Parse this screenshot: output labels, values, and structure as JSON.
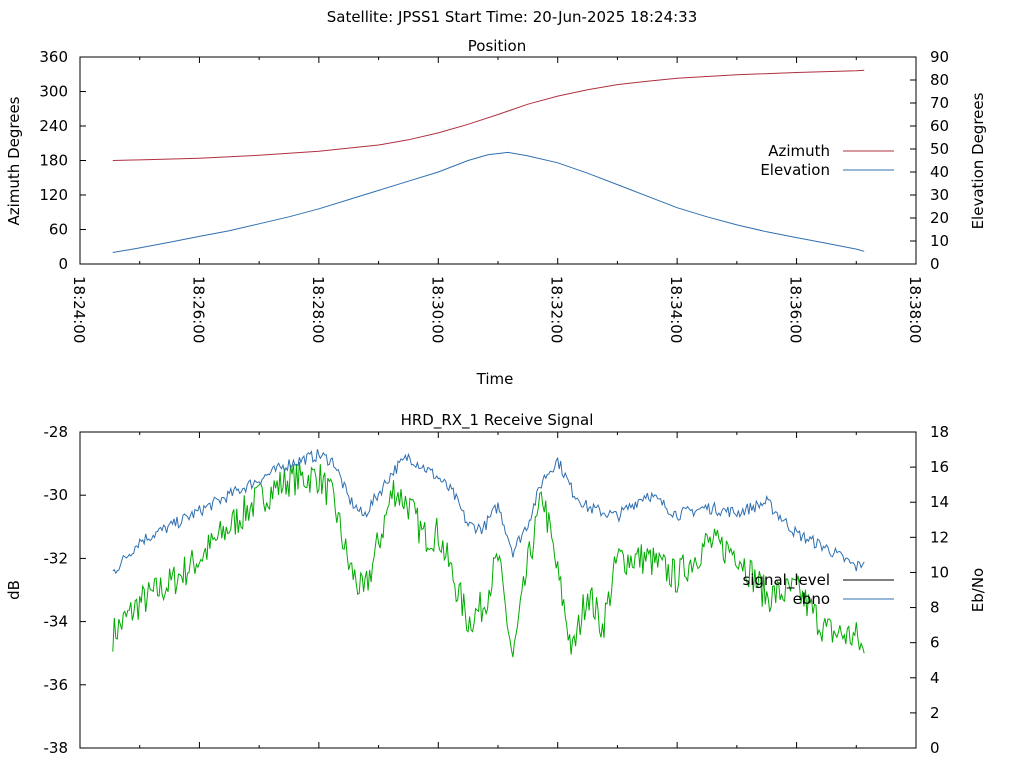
{
  "header": {
    "title": "Satellite: JPSS1    Start Time: 20-Jun-2025 18:24:33"
  },
  "chart_data": [
    {
      "type": "line",
      "title": "Position",
      "xlabel": "Time",
      "ylabel": "Azimuth Degrees",
      "y2label": "Elevation Degrees",
      "x_ticks": [
        "18:24:00",
        "18:26:00",
        "18:28:00",
        "18:30:00",
        "18:32:00",
        "18:34:00",
        "18:36:00",
        "18:38:00"
      ],
      "xlim": [
        "18:24:00",
        "18:38:00"
      ],
      "ylim": [
        0,
        360
      ],
      "y_ticks": [
        "0",
        "60",
        "120",
        "180",
        "240",
        "300",
        "360"
      ],
      "y2lim": [
        0,
        90
      ],
      "y2_ticks": [
        "0",
        "10",
        "20",
        "30",
        "40",
        "50",
        "60",
        "70",
        "80",
        "90"
      ],
      "legend": "right",
      "series": [
        {
          "name": "Azimuth",
          "axis": "y",
          "color": "#b03040",
          "x": [
            "18:24:33",
            "18:25:00",
            "18:26:00",
            "18:27:00",
            "18:28:00",
            "18:29:00",
            "18:29:30",
            "18:30:00",
            "18:30:30",
            "18:31:00",
            "18:31:30",
            "18:32:00",
            "18:32:30",
            "18:33:00",
            "18:33:30",
            "18:34:00",
            "18:35:00",
            "18:36:00",
            "18:37:00",
            "18:37:08"
          ],
          "y": [
            180,
            181,
            184,
            189,
            196,
            207,
            216,
            228,
            243,
            260,
            278,
            292,
            303,
            312,
            318,
            323,
            329,
            333,
            336,
            337
          ]
        },
        {
          "name": "Elevation",
          "axis": "y2",
          "color": "#3070b0",
          "x": [
            "18:24:33",
            "18:25:00",
            "18:25:30",
            "18:26:00",
            "18:26:30",
            "18:27:00",
            "18:27:30",
            "18:28:00",
            "18:28:30",
            "18:29:00",
            "18:29:30",
            "18:30:00",
            "18:30:30",
            "18:30:50",
            "18:31:10",
            "18:31:30",
            "18:32:00",
            "18:32:30",
            "18:33:00",
            "18:33:30",
            "18:34:00",
            "18:34:30",
            "18:35:00",
            "18:35:30",
            "18:36:00",
            "18:36:30",
            "18:37:00",
            "18:37:08"
          ],
          "y": [
            5,
            7,
            9.5,
            12,
            14.5,
            17.5,
            20.5,
            24,
            28,
            32,
            36,
            40,
            45,
            47.5,
            48.5,
            47,
            44,
            39.5,
            34.5,
            29.5,
            24.5,
            20.5,
            17,
            14,
            11.5,
            9,
            6.5,
            5.5
          ]
        }
      ]
    },
    {
      "type": "line",
      "title": "HRD_RX_1 Receive Signal",
      "xlabel": "",
      "ylabel": "dB",
      "y2label": "Eb/No",
      "xlim": [
        "18:24:00",
        "18:38:00"
      ],
      "ylim": [
        -38,
        -28
      ],
      "y_ticks": [
        "-38",
        "-36",
        "-34",
        "-32",
        "-30",
        "-28"
      ],
      "y2lim": [
        0,
        18
      ],
      "y2_ticks": [
        "0",
        "2",
        "4",
        "6",
        "8",
        "10",
        "12",
        "14",
        "16",
        "18"
      ],
      "legend": "right",
      "series": [
        {
          "name": "signal_level",
          "axis": "y",
          "color": "#000000",
          "x": [],
          "y": []
        },
        {
          "name": "ebno",
          "axis": "y2",
          "color": "#3070b0",
          "x": [
            "18:24:33",
            "18:25:00",
            "18:25:30",
            "18:26:00",
            "18:26:30",
            "18:27:00",
            "18:27:30",
            "18:28:00",
            "18:28:15",
            "18:28:30",
            "18:28:45",
            "18:29:00",
            "18:29:15",
            "18:29:30",
            "18:30:00",
            "18:30:15",
            "18:30:30",
            "18:30:45",
            "18:31:00",
            "18:31:15",
            "18:31:30",
            "18:31:45",
            "18:32:00",
            "18:32:15",
            "18:32:30",
            "18:33:00",
            "18:33:30",
            "18:34:00",
            "18:34:30",
            "18:35:00",
            "18:35:30",
            "18:36:00",
            "18:36:30",
            "18:37:00",
            "18:37:08"
          ],
          "y": [
            10,
            11.8,
            12.6,
            13.5,
            14.4,
            15.3,
            16.2,
            16.7,
            16.3,
            14.2,
            13.2,
            14.5,
            15.8,
            16.6,
            15.4,
            14.5,
            12.7,
            12.5,
            13.8,
            11.2,
            12.8,
            15.3,
            16.4,
            14.6,
            13.7,
            13.2,
            14.5,
            13.3,
            13.7,
            13.4,
            14.0,
            12.2,
            11.4,
            10.3,
            10.6
          ]
        },
        {
          "name": "",
          "axis": "y",
          "color": "#00aa00",
          "x": [
            "18:24:33",
            "18:25:00",
            "18:25:30",
            "18:26:00",
            "18:26:30",
            "18:27:00",
            "18:27:30",
            "18:28:00",
            "18:28:15",
            "18:28:30",
            "18:28:45",
            "18:29:00",
            "18:29:15",
            "18:29:30",
            "18:29:45",
            "18:30:00",
            "18:30:15",
            "18:30:30",
            "18:30:45",
            "18:31:00",
            "18:31:15",
            "18:31:30",
            "18:31:45",
            "18:32:00",
            "18:32:15",
            "18:32:30",
            "18:32:45",
            "18:33:00",
            "18:33:30",
            "18:34:00",
            "18:34:30",
            "18:35:00",
            "18:35:30",
            "18:36:00",
            "18:36:30",
            "18:37:00",
            "18:37:08"
          ],
          "y": [
            -34.4,
            -33.4,
            -32.8,
            -32.0,
            -31.0,
            -30.1,
            -29.5,
            -29.4,
            -30.2,
            -32.2,
            -33.2,
            -31.5,
            -29.8,
            -30.3,
            -31.3,
            -31.2,
            -32.6,
            -34.0,
            -33.5,
            -32.0,
            -35.2,
            -32.2,
            -30.0,
            -32.5,
            -35.0,
            -33.0,
            -34.2,
            -32.0,
            -32.0,
            -32.6,
            -31.5,
            -31.8,
            -33.2,
            -33.0,
            -34.3,
            -34.5,
            -35.0
          ]
        }
      ]
    }
  ]
}
